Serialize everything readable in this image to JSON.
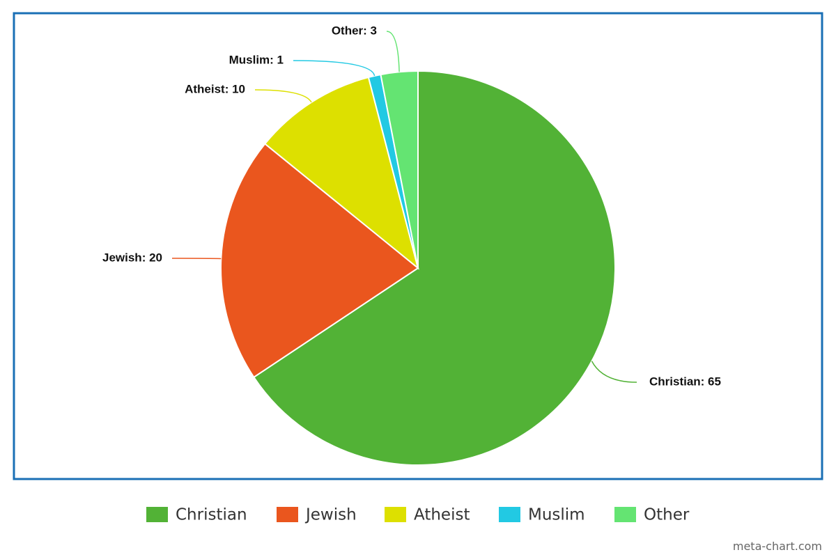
{
  "chart_data": {
    "type": "pie",
    "categories": [
      "Christian",
      "Jewish",
      "Atheist",
      "Muslim",
      "Other"
    ],
    "values": [
      65,
      20,
      10,
      1,
      3
    ],
    "value_labels": [
      "Christian: 65",
      "Jewish: 20",
      "Atheist: 10",
      "Muslim: 1",
      "Other: 3"
    ],
    "colors": [
      "#52b236",
      "#ea561e",
      "#dde000",
      "#22c9e3",
      "#64e472"
    ],
    "legend": "bottom",
    "credit": "meta-chart.com"
  }
}
